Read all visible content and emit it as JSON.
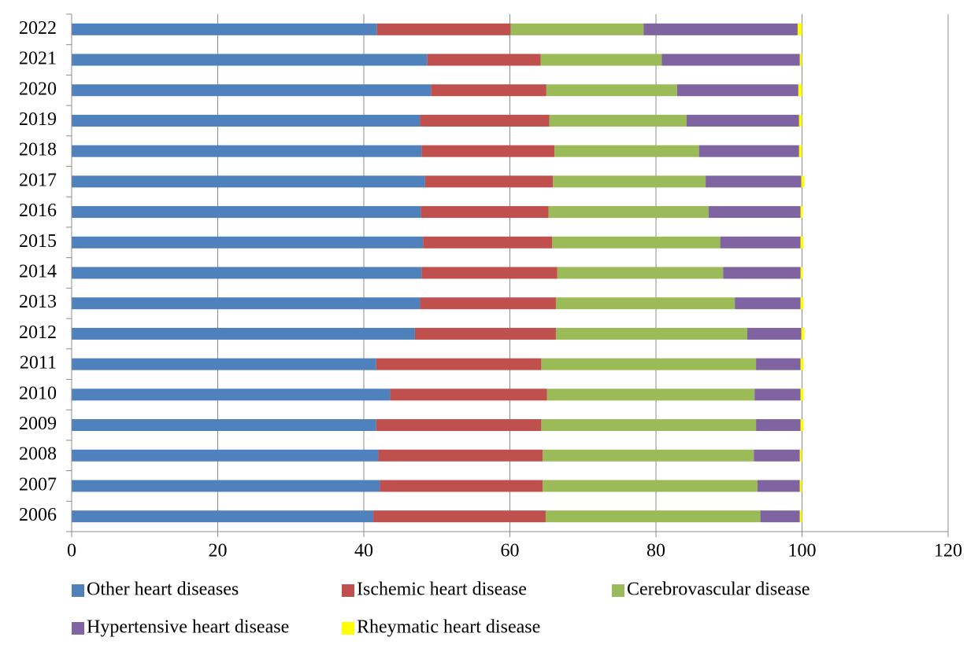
{
  "chart_data": {
    "type": "bar",
    "orientation": "horizontal",
    "stacked": true,
    "categories": [
      "2022",
      "2021",
      "2020",
      "2019",
      "2018",
      "2017",
      "2016",
      "2015",
      "2014",
      "2013",
      "2012",
      "2011",
      "2010",
      "2009",
      "2008",
      "2007",
      "2006"
    ],
    "series": [
      {
        "name": "Other heart diseases",
        "color": "#4F81BD",
        "values": [
          41.8,
          48.7,
          49.2,
          47.7,
          47.9,
          48.4,
          47.8,
          48.1,
          47.9,
          47.7,
          47.0,
          41.7,
          43.6,
          41.7,
          42.0,
          42.2,
          41.3
        ]
      },
      {
        "name": "Ischemic heart disease",
        "color": "#C0504D",
        "values": [
          18.3,
          15.5,
          15.8,
          17.7,
          18.2,
          17.5,
          17.5,
          17.7,
          18.6,
          18.6,
          19.3,
          22.6,
          21.5,
          22.6,
          22.5,
          22.3,
          23.6
        ]
      },
      {
        "name": "Cerebrovascular disease",
        "color": "#9BBB59",
        "values": [
          18.2,
          16.6,
          17.9,
          18.8,
          19.8,
          20.9,
          21.9,
          23.0,
          22.7,
          24.5,
          26.2,
          29.4,
          28.4,
          29.4,
          28.9,
          29.4,
          29.4
        ]
      },
      {
        "name": "Hypertensive heart disease",
        "color": "#8064A2",
        "values": [
          21.1,
          18.9,
          16.6,
          15.4,
          13.7,
          13.1,
          12.6,
          11.0,
          10.6,
          9.0,
          7.4,
          6.1,
          6.3,
          6.1,
          6.3,
          5.8,
          5.4
        ]
      },
      {
        "name": "Rheymatic heart disease",
        "color": "#FFFF00",
        "values": [
          0.6,
          0.3,
          0.5,
          0.4,
          0.4,
          0.4,
          0.3,
          0.4,
          0.3,
          0.4,
          0.4,
          0.4,
          0.4,
          0.4,
          0.3,
          0.3,
          0.3
        ]
      }
    ],
    "xlim": [
      0,
      120
    ],
    "xticks": [
      "0",
      "20",
      "40",
      "60",
      "80",
      "100",
      "120"
    ],
    "grid": true,
    "legend_position": "bottom",
    "title": "",
    "xlabel": "",
    "ylabel": ""
  }
}
